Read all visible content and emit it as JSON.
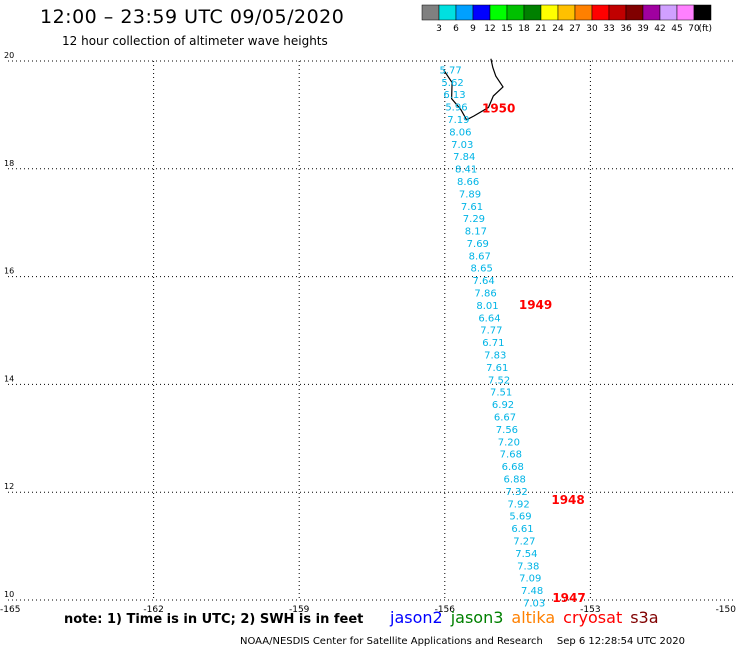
{
  "header": {
    "title": "12:00 – 23:59 UTC 09/05/2020",
    "subtitle": "12 hour collection of altimeter wave heights"
  },
  "colorbar": {
    "unit": "(ft)",
    "bins": [
      {
        "label": "3",
        "color": "#808080"
      },
      {
        "label": "6",
        "color": "#00e0e0"
      },
      {
        "label": "9",
        "color": "#00a0ff"
      },
      {
        "label": "12",
        "color": "#0000ff"
      },
      {
        "label": "15",
        "color": "#00ff00"
      },
      {
        "label": "18",
        "color": "#00c000"
      },
      {
        "label": "21",
        "color": "#008000"
      },
      {
        "label": "24",
        "color": "#ffff00"
      },
      {
        "label": "27",
        "color": "#ffc000"
      },
      {
        "label": "30",
        "color": "#ff8000"
      },
      {
        "label": "33",
        "color": "#ff0000"
      },
      {
        "label": "36",
        "color": "#c00000"
      },
      {
        "label": "39",
        "color": "#800000"
      },
      {
        "label": "42",
        "color": "#a000a0"
      },
      {
        "label": "45",
        "color": "#d0a0ff"
      },
      {
        "label": "70",
        "color": "#ff80ff"
      },
      {
        "label": "",
        "color": "#000000"
      }
    ]
  },
  "map": {
    "lon_range": [
      -165,
      -150
    ],
    "lat_range": [
      10,
      20
    ],
    "lon_ticks": [
      "-165",
      "-162",
      "-159",
      "-156",
      "-153",
      "-150"
    ],
    "lat_ticks": [
      "20",
      "18",
      "16",
      "14",
      "12",
      "10"
    ],
    "track_color": "#00b4e6",
    "time_color": "#ff0000",
    "track": [
      {
        "lat": 19.77,
        "lon": -155.88,
        "swh": "5.77"
      },
      {
        "lat": 19.54,
        "lon": -155.84,
        "swh": "5.62"
      },
      {
        "lat": 19.31,
        "lon": -155.8,
        "swh": "6.13"
      },
      {
        "lat": 19.08,
        "lon": -155.76,
        "swh": "5.96"
      },
      {
        "lat": 18.85,
        "lon": -155.72,
        "swh": "7.19"
      },
      {
        "lat": 18.62,
        "lon": -155.68,
        "swh": "8.06"
      },
      {
        "lat": 18.39,
        "lon": -155.64,
        "swh": "7.03"
      },
      {
        "lat": 18.16,
        "lon": -155.6,
        "swh": "7.84"
      },
      {
        "lat": 17.93,
        "lon": -155.56,
        "swh": "8.41"
      },
      {
        "lat": 17.7,
        "lon": -155.52,
        "swh": "8.66"
      },
      {
        "lat": 17.47,
        "lon": -155.48,
        "swh": "7.89"
      },
      {
        "lat": 17.24,
        "lon": -155.44,
        "swh": "7.61"
      },
      {
        "lat": 17.01,
        "lon": -155.4,
        "swh": "7.29"
      },
      {
        "lat": 16.78,
        "lon": -155.36,
        "swh": "8.17"
      },
      {
        "lat": 16.55,
        "lon": -155.32,
        "swh": "7.69"
      },
      {
        "lat": 16.32,
        "lon": -155.28,
        "swh": "8.67"
      },
      {
        "lat": 16.09,
        "lon": -155.24,
        "swh": "8.65"
      },
      {
        "lat": 15.86,
        "lon": -155.2,
        "swh": "7.64"
      },
      {
        "lat": 15.63,
        "lon": -155.16,
        "swh": "7.86"
      },
      {
        "lat": 15.4,
        "lon": -155.12,
        "swh": "8.01"
      },
      {
        "lat": 15.17,
        "lon": -155.08,
        "swh": "6.64"
      },
      {
        "lat": 14.94,
        "lon": -155.04,
        "swh": "7.77"
      },
      {
        "lat": 14.71,
        "lon": -155.0,
        "swh": "6.71"
      },
      {
        "lat": 14.48,
        "lon": -154.96,
        "swh": "7.83"
      },
      {
        "lat": 14.25,
        "lon": -154.92,
        "swh": "7.61"
      },
      {
        "lat": 14.02,
        "lon": -154.88,
        "swh": "7.52"
      },
      {
        "lat": 13.79,
        "lon": -154.84,
        "swh": "7.51"
      },
      {
        "lat": 13.56,
        "lon": -154.8,
        "swh": "6.92"
      },
      {
        "lat": 13.33,
        "lon": -154.76,
        "swh": "6.67"
      },
      {
        "lat": 13.1,
        "lon": -154.72,
        "swh": "7.56"
      },
      {
        "lat": 12.87,
        "lon": -154.68,
        "swh": "7.20"
      },
      {
        "lat": 12.64,
        "lon": -154.64,
        "swh": "7.68"
      },
      {
        "lat": 12.41,
        "lon": -154.6,
        "swh": "6.68"
      },
      {
        "lat": 12.18,
        "lon": -154.56,
        "swh": "6.88"
      },
      {
        "lat": 11.95,
        "lon": -154.52,
        "swh": "7.32"
      },
      {
        "lat": 11.72,
        "lon": -154.48,
        "swh": "7.92"
      },
      {
        "lat": 11.49,
        "lon": -154.44,
        "swh": "5.69"
      },
      {
        "lat": 11.26,
        "lon": -154.4,
        "swh": "6.61"
      },
      {
        "lat": 11.03,
        "lon": -154.36,
        "swh": "7.27"
      },
      {
        "lat": 10.8,
        "lon": -154.32,
        "swh": "7.54"
      },
      {
        "lat": 10.57,
        "lon": -154.28,
        "swh": "7.38"
      },
      {
        "lat": 10.34,
        "lon": -154.24,
        "swh": "7.09"
      },
      {
        "lat": 10.11,
        "lon": -154.2,
        "swh": "7.48"
      },
      {
        "lat": 9.88,
        "lon": -154.16,
        "swh": "7.03"
      }
    ],
    "time_labels": [
      {
        "lat": 19.04,
        "lon": -154.89,
        "text": "1950"
      },
      {
        "lat": 15.4,
        "lon": -154.13,
        "text": "1949"
      },
      {
        "lat": 11.78,
        "lon": -153.46,
        "text": "1948"
      },
      {
        "lat": 9.96,
        "lon": -153.44,
        "text": "1947"
      }
    ],
    "coastline": [
      [
        -155.05,
        20.04
      ],
      [
        -155.01,
        19.88
      ],
      [
        -154.95,
        19.72
      ],
      [
        -154.8,
        19.52
      ],
      [
        -155.0,
        19.35
      ],
      [
        -155.1,
        19.14
      ],
      [
        -155.4,
        18.98
      ],
      [
        -155.55,
        18.91
      ],
      [
        -155.67,
        19.1
      ],
      [
        -155.86,
        19.3
      ],
      [
        -155.85,
        19.6
      ],
      [
        -156.02,
        19.83
      ]
    ]
  },
  "footer": {
    "note": "note: 1) Time is in UTC; 2) SWH is in feet",
    "satellites": [
      {
        "name": "jason2",
        "color": "#0000ff"
      },
      {
        "name": "jason3",
        "color": "#008000"
      },
      {
        "name": "altika",
        "color": "#ff8000"
      },
      {
        "name": "cryosat",
        "color": "#ff0000"
      },
      {
        "name": "s3a",
        "color": "#800000"
      }
    ],
    "credit": "NOAA/NESDIS Center for Satellite Applications and Research",
    "timestamp": "Sep  6 12:28:54 UTC 2020"
  }
}
